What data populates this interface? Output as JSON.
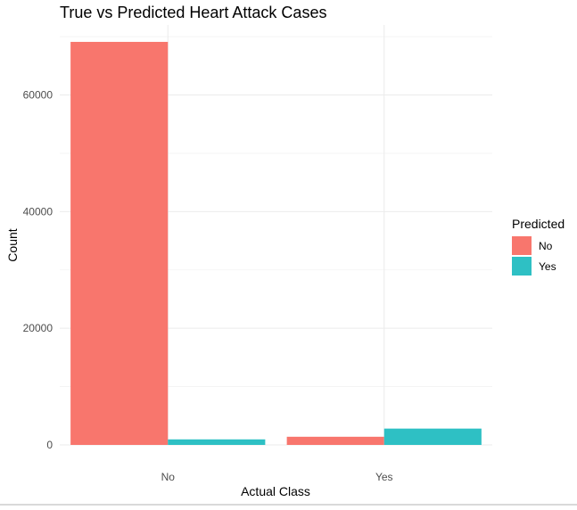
{
  "chart_data": {
    "type": "bar",
    "title": "True vs Predicted Heart Attack Cases",
    "xlabel": "Actual Class",
    "ylabel": "Count",
    "categories": [
      "No",
      "Yes"
    ],
    "series": [
      {
        "name": "No",
        "color": "#F8766D",
        "values": [
          69100,
          1400
        ]
      },
      {
        "name": "Yes",
        "color": "#2EC0C4",
        "values": [
          950,
          2800
        ]
      }
    ],
    "ylim": [
      0,
      72000
    ],
    "yticks": [
      0,
      20000,
      40000,
      60000
    ],
    "ytick_labels": [
      "0",
      "20000",
      "40000",
      "60000"
    ],
    "grid": true,
    "legend": {
      "title": "Predicted",
      "position": "right"
    }
  }
}
